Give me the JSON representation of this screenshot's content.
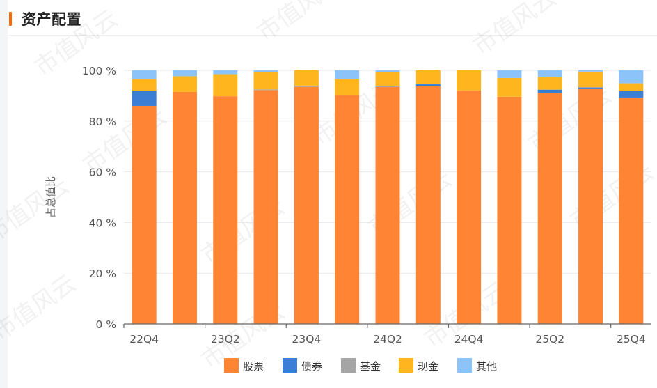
{
  "header": {
    "title": "资产配置"
  },
  "colors": {
    "accent": "#ff6a00",
    "股票": "#ff8534",
    "债券": "#3a7ed6",
    "基金": "#a5a5a5",
    "现金": "#ffb61e",
    "其他": "#8cc4fa"
  },
  "watermark": "市值风云",
  "chart_data": {
    "type": "bar",
    "stacked": true,
    "ylabel": "占总值比",
    "ylim": [
      0,
      100
    ],
    "yticks": [
      "0 %",
      "20 %",
      "40 %",
      "60 %",
      "80 %",
      "100 %"
    ],
    "xtick_labels": [
      "22Q4",
      "23Q2",
      "23Q4",
      "24Q2",
      "24Q4",
      "25Q2",
      "25Q4"
    ],
    "categories": [
      "22Q4",
      "23Q1",
      "23Q2",
      "23Q3",
      "23Q4",
      "24Q1",
      "24Q2",
      "24Q3",
      "24Q4",
      "25Q1",
      "25Q2",
      "25Q3",
      "25Q4"
    ],
    "series": [
      {
        "name": "股票",
        "values": [
          86.0,
          91.5,
          89.8,
          92.2,
          93.5,
          90.3,
          93.4,
          93.7,
          92.1,
          89.6,
          91.2,
          92.6,
          89.3
        ]
      },
      {
        "name": "债券",
        "values": [
          6.0,
          0.0,
          0.0,
          0.0,
          0.0,
          0.0,
          0.0,
          0.8,
          0.0,
          0.0,
          1.2,
          0.5,
          2.7
        ]
      },
      {
        "name": "基金",
        "values": [
          0.0,
          0.0,
          0.0,
          0.3,
          0.5,
          0.0,
          0.3,
          0.0,
          0.0,
          0.0,
          0.0,
          0.3,
          0.0
        ]
      },
      {
        "name": "现金",
        "values": [
          4.5,
          6.2,
          8.7,
          6.8,
          6.0,
          6.2,
          5.6,
          5.5,
          7.9,
          7.4,
          5.1,
          6.1,
          2.9
        ]
      },
      {
        "name": "其他",
        "values": [
          3.5,
          2.3,
          1.5,
          0.7,
          0.0,
          3.5,
          0.7,
          0.0,
          0.0,
          3.0,
          2.5,
          0.5,
          5.1
        ]
      }
    ],
    "legend_position": "bottom"
  }
}
